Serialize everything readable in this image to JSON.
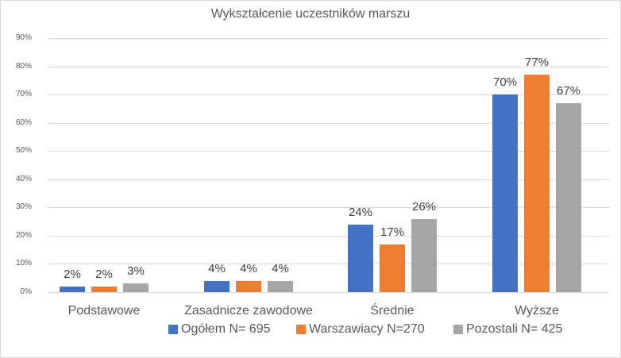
{
  "chart_data": {
    "type": "bar",
    "title": "Wykształcenie uczestników marszu",
    "xlabel": "",
    "ylabel": "",
    "ylim": [
      0,
      90
    ],
    "yticks": [
      "0%",
      "10%",
      "20%",
      "30%",
      "40%",
      "50%",
      "60%",
      "70%",
      "80%",
      "90%"
    ],
    "grid": true,
    "legend_position": "bottom",
    "categories": [
      "Podstawowe",
      "Zasadnicze zawodowe",
      "Średnie",
      "Wyższe"
    ],
    "series": [
      {
        "name": "Ogółem N= 695",
        "color": "#4472c4",
        "values": [
          2,
          4,
          24,
          70
        ],
        "labels": [
          "2%",
          "4%",
          "24%",
          "70%"
        ]
      },
      {
        "name": "Warszawiacy N=270",
        "color": "#ed7d31",
        "values": [
          2,
          4,
          17,
          77
        ],
        "labels": [
          "2%",
          "4%",
          "17%",
          "77%"
        ]
      },
      {
        "name": "Pozostali N= 425",
        "color": "#a5a5a5",
        "values": [
          3,
          4,
          26,
          67
        ],
        "labels": [
          "3%",
          "4%",
          "26%",
          "67%"
        ]
      }
    ]
  }
}
